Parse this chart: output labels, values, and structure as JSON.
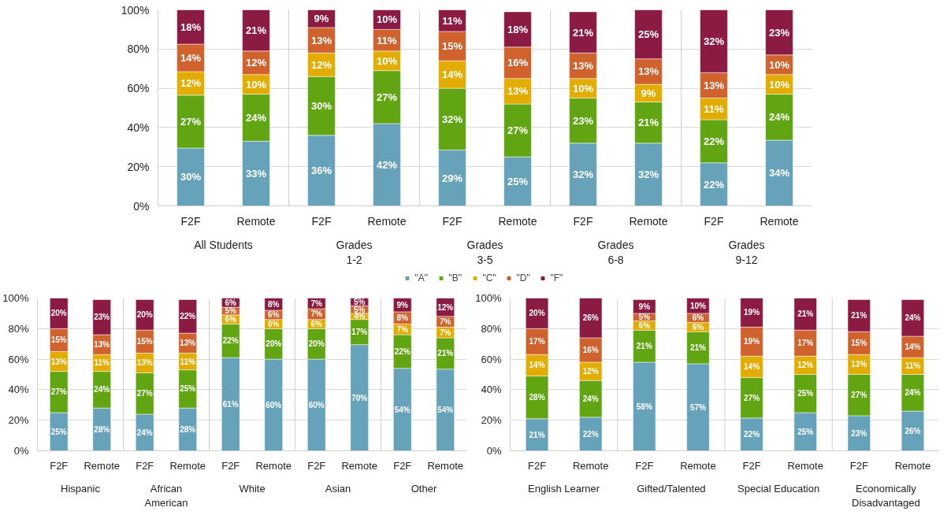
{
  "chart_data": [
    {
      "type": "bar",
      "stacked": true,
      "categories": [
        "F2F",
        "Remote",
        "F2F",
        "Remote",
        "F2F",
        "Remote",
        "F2F",
        "Remote",
        "F2F",
        "Remote"
      ],
      "annotations": [
        "All Students",
        "Grades\n1-2",
        "Grades\n3-5",
        "Grades\n6-8",
        "Grades\n9-12"
      ],
      "series": [
        {
          "name": "\"A\"",
          "color": "#66a3ba",
          "values": [
            29.5,
            33,
            36,
            42,
            28.5,
            25,
            32,
            32,
            22,
            33.5
          ],
          "value_labels": [
            "30%",
            "33%",
            "36%",
            "42%",
            "29%",
            "25%",
            "32%",
            "32%",
            "22%",
            "34%"
          ]
        },
        {
          "name": "\"B\"",
          "color": "#62a512",
          "values": [
            27,
            24,
            30,
            27,
            31.5,
            27,
            23,
            21,
            22,
            23.5
          ],
          "value_labels": [
            "27%",
            "24%",
            "30%",
            "27%",
            "32%",
            "27%",
            "23%",
            "21%",
            "22%",
            "24%"
          ]
        },
        {
          "name": "\"C\"",
          "color": "#e2ac00",
          "values": [
            12,
            10,
            12,
            10,
            14,
            13,
            10,
            9,
            11,
            10
          ],
          "value_labels": [
            "12%",
            "10%",
            "12%",
            "10%",
            "14%",
            "13%",
            "10%",
            "9%",
            "11%",
            "10%"
          ]
        },
        {
          "name": "\"D\"",
          "color": "#d0622e",
          "values": [
            14,
            12,
            13,
            11,
            15,
            16,
            13,
            13,
            13,
            10
          ],
          "value_labels": [
            "14%",
            "12%",
            "13%",
            "11%",
            "15%",
            "16%",
            "13%",
            "13%",
            "13%",
            "10%"
          ]
        },
        {
          "name": "\"F\"",
          "color": "#8b1b42",
          "values": [
            17.5,
            21,
            9,
            10,
            11,
            18,
            21,
            25,
            32,
            23
          ],
          "value_labels": [
            "18%",
            "21%",
            "9%",
            "10%",
            "11%",
            "18%",
            "21%",
            "25%",
            "32%",
            "23%"
          ]
        }
      ],
      "ylim": [
        0,
        100
      ],
      "yticks": [
        {
          "value": 0,
          "label": "0%"
        },
        {
          "value": 20,
          "label": "20%"
        },
        {
          "value": 40,
          "label": "40%"
        },
        {
          "value": 60,
          "label": "60%"
        },
        {
          "value": 80,
          "label": "80%"
        },
        {
          "value": 100,
          "label": "100%"
        }
      ],
      "grid": "y",
      "legend": "bottom"
    },
    {
      "type": "bar",
      "stacked": true,
      "categories": [
        "F2F",
        "Remote",
        "F2F",
        "Remote",
        "F2F",
        "Remote",
        "F2F",
        "Remote",
        "F2F",
        "Remote"
      ],
      "annotations": [
        "Hispanic",
        "African\nAmerican",
        "White",
        "Asian",
        "Other"
      ],
      "series": [
        {
          "color": "#66a3ba",
          "values": [
            25,
            28,
            24,
            28,
            61,
            60,
            60,
            69.5,
            54,
            53.5
          ],
          "value_labels": [
            "25%",
            "28%",
            "24%",
            "28%",
            "61%",
            "60%",
            "60%",
            "70%",
            "54%",
            "54%"
          ]
        },
        {
          "color": "#62a512",
          "values": [
            27,
            24,
            27,
            25,
            22,
            20,
            20,
            16.5,
            22,
            20.5
          ],
          "value_labels": [
            "27%",
            "24%",
            "27%",
            "25%",
            "22%",
            "20%",
            "20%",
            "17%",
            "22%",
            "21%"
          ]
        },
        {
          "color": "#e2ac00",
          "values": [
            13,
            11,
            13,
            11,
            6,
            6,
            6,
            4,
            7,
            7
          ],
          "value_labels": [
            "13%",
            "11%",
            "13%",
            "11%",
            "6%",
            "6%",
            "6%",
            "4%",
            "7%",
            "7%"
          ]
        },
        {
          "color": "#d0622e",
          "values": [
            15,
            13,
            15,
            13,
            5,
            6,
            7,
            5,
            8,
            7
          ],
          "value_labels": [
            "15%",
            "13%",
            "15%",
            "13%",
            "5%",
            "6%",
            "7%",
            "5%",
            "8%",
            "7%"
          ]
        },
        {
          "color": "#8b1b42",
          "values": [
            20,
            23,
            20,
            22,
            6,
            8,
            7,
            5,
            9,
            12
          ],
          "value_labels": [
            "20%",
            "23%",
            "20%",
            "22%",
            "6%",
            "8%",
            "7%",
            "5%",
            "9%",
            "12%"
          ]
        }
      ],
      "ylim": [
        0,
        100
      ],
      "yticks": [
        {
          "value": 0,
          "label": "0%"
        },
        {
          "value": 20,
          "label": "20%"
        },
        {
          "value": 40,
          "label": "40%"
        },
        {
          "value": 60,
          "label": "60%"
        },
        {
          "value": 80,
          "label": "80%"
        },
        {
          "value": 100,
          "label": "100%"
        }
      ],
      "grid": "y"
    },
    {
      "type": "bar",
      "stacked": true,
      "categories": [
        "F2F",
        "Remote",
        "F2F",
        "Remote",
        "F2F",
        "Remote",
        "F2F",
        "Remote"
      ],
      "annotations": [
        "English Learner",
        "Gifted/Talented",
        "Special Education",
        "Economically\nDisadvantaged"
      ],
      "series": [
        {
          "color": "#66a3ba",
          "values": [
            21,
            22,
            58,
            57,
            21.5,
            25,
            23,
            26
          ],
          "value_labels": [
            "21%",
            "22%",
            "58%",
            "57%",
            "22%",
            "25%",
            "23%",
            "26%"
          ]
        },
        {
          "color": "#62a512",
          "values": [
            28,
            24,
            21,
            21,
            26.5,
            25,
            27,
            24
          ],
          "value_labels": [
            "28%",
            "24%",
            "21%",
            "21%",
            "27%",
            "25%",
            "27%",
            "24%"
          ]
        },
        {
          "color": "#e2ac00",
          "values": [
            14,
            12,
            6,
            6,
            14,
            12,
            13,
            11
          ],
          "value_labels": [
            "14%",
            "12%",
            "6%",
            "6%",
            "14%",
            "12%",
            "13%",
            "11%"
          ]
        },
        {
          "color": "#d0622e",
          "values": [
            17,
            16,
            5,
            6,
            19,
            17,
            15,
            14
          ],
          "value_labels": [
            "17%",
            "16%",
            "5%",
            "6%",
            "19%",
            "17%",
            "15%",
            "14%"
          ]
        },
        {
          "color": "#8b1b42",
          "values": [
            20,
            26,
            9,
            10,
            19,
            21,
            21,
            24
          ],
          "value_labels": [
            "20%",
            "26%",
            "9%",
            "10%",
            "19%",
            "21%",
            "21%",
            "24%"
          ]
        }
      ],
      "ylim": [
        0,
        100
      ],
      "yticks": [
        {
          "value": 0,
          "label": "0%"
        },
        {
          "value": 20,
          "label": "20%"
        },
        {
          "value": 40,
          "label": "40%"
        },
        {
          "value": 60,
          "label": "60%"
        },
        {
          "value": 80,
          "label": "80%"
        },
        {
          "value": 100,
          "label": "100%"
        }
      ],
      "grid": "y"
    }
  ]
}
